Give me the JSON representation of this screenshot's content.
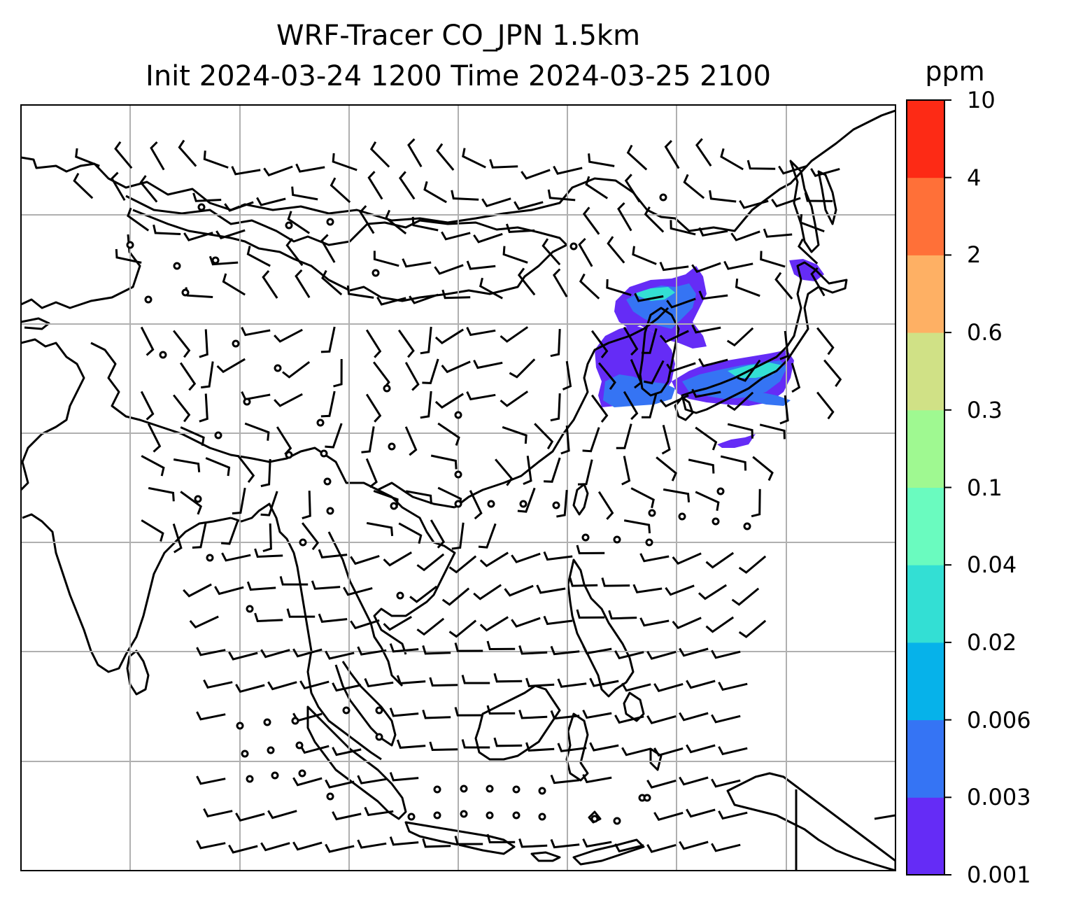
{
  "title": {
    "line1": "WRF-Tracer CO_JPN 1.5km",
    "line2": "Init 2024-03-24 1200 Time 2024-03-25 2100"
  },
  "colorbar": {
    "unit": "ppm",
    "levels": [
      "0.001",
      "0.003",
      "0.006",
      "0.02",
      "0.04",
      "0.1",
      "0.3",
      "0.6",
      "2",
      "4",
      "10"
    ],
    "colors": [
      "#652cf6",
      "#3574f4",
      "#06b2ea",
      "#33dfd4",
      "#6afbbf",
      "#9ff991",
      "#d0e186",
      "#feb064",
      "#ff7038",
      "#fd2a15"
    ]
  },
  "map": {
    "region": "East Asia, Southeast Asia and Maritime Continent",
    "elements": [
      "coastlines",
      "country-borders",
      "gridlines",
      "wind-barbs",
      "calm-circles",
      "co-tracer-shading"
    ],
    "tracer_plume_colors_present": [
      "#652cf6",
      "#3574f4",
      "#33dfd4"
    ]
  }
}
